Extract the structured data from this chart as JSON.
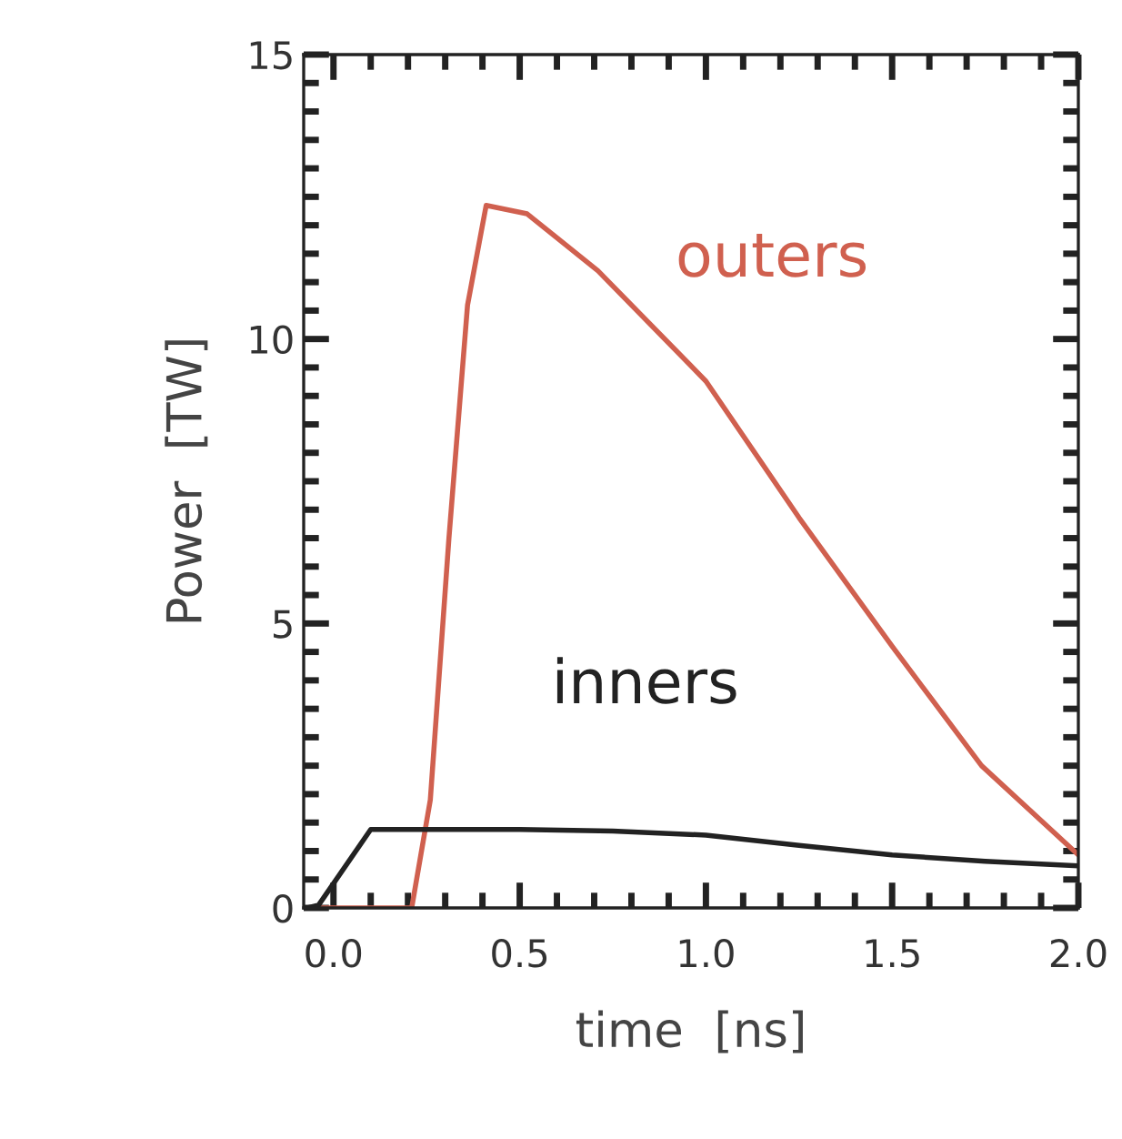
{
  "chart_data": {
    "type": "line",
    "xlabel": "time  [ns]",
    "ylabel": "Power  [TW]",
    "xlim": [
      -0.08,
      2.0
    ],
    "ylim": [
      0,
      15
    ],
    "xticks": [
      {
        "value": 0.0,
        "label": "0.0"
      },
      0.5,
      {
        "value": 1.0,
        "label": "1.0"
      },
      1.5,
      {
        "value": 2.0,
        "label": "2.0"
      }
    ],
    "yticks": [
      0,
      5,
      10,
      15
    ],
    "grid": false,
    "legend": false,
    "marker": "none",
    "line_style": "solid",
    "series": [
      {
        "name": "outers",
        "color": "#d0604f",
        "x": [
          -0.06,
          0.21,
          0.26,
          0.31,
          0.36,
          0.41,
          0.52,
          0.71,
          1.0,
          1.25,
          1.5,
          1.74,
          2.0
        ],
        "values": [
          0,
          0,
          1.9,
          6.5,
          10.6,
          12.35,
          12.2,
          11.2,
          9.26,
          6.86,
          4.6,
          2.5,
          0.93
        ]
      },
      {
        "name": "inners",
        "color": "#222222",
        "x": [
          -0.07,
          -0.04,
          0.1,
          0.5,
          0.75,
          1.0,
          1.25,
          1.5,
          1.75,
          2.0
        ],
        "values": [
          0,
          0.05,
          1.38,
          1.38,
          1.35,
          1.28,
          1.1,
          0.93,
          0.82,
          0.74
        ]
      }
    ]
  }
}
